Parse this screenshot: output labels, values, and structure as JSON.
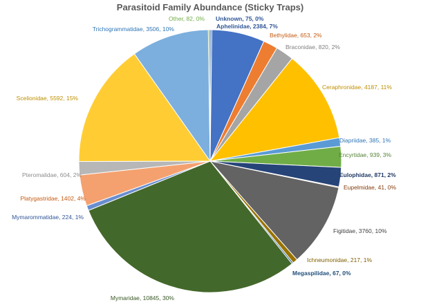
{
  "chart_data": {
    "type": "pie",
    "title": "Parasitoid Family Abundance (Sticky Traps)",
    "slices": [
      {
        "label": "Unknown",
        "value": 75,
        "percent": "0%",
        "color": "#4472C4",
        "label_color": "#2F5597"
      },
      {
        "label": "Aphelinidae",
        "value": 2384,
        "percent": "7%",
        "color": "#4472C4",
        "label_color": "#2F5597"
      },
      {
        "label": "Bethylidae",
        "value": 653,
        "percent": "2%",
        "color": "#ED7D31",
        "label_color": "#C55A11"
      },
      {
        "label": "Braconidae",
        "value": 820,
        "percent": "2%",
        "color": "#A5A5A5",
        "label_color": "#7F7F7F"
      },
      {
        "label": "Ceraphronidae",
        "value": 4187,
        "percent": "11%",
        "color": "#FFC000",
        "label_color": "#BF8F00"
      },
      {
        "label": "Diapriidae",
        "value": 385,
        "percent": "1%",
        "color": "#5B9BD5",
        "label_color": "#2E75B6"
      },
      {
        "label": "Encyrtidae",
        "value": 939,
        "percent": "3%",
        "color": "#70AD47",
        "label_color": "#548235"
      },
      {
        "label": "Eulophidae",
        "value": 871,
        "percent": "2%",
        "color": "#264478",
        "label_color": "#1F3864"
      },
      {
        "label": "Eupelmidae",
        "value": 41,
        "percent": "0%",
        "color": "#9E480E",
        "label_color": "#843C0C"
      },
      {
        "label": "Figitidae",
        "value": 3760,
        "percent": "10%",
        "color": "#636363",
        "label_color": "#404040"
      },
      {
        "label": "Ichneumonidae",
        "value": 217,
        "percent": "1%",
        "color": "#997300",
        "label_color": "#7F6000"
      },
      {
        "label": "Megaspilidae",
        "value": 67,
        "percent": "0%",
        "color": "#255E91",
        "label_color": "#1F4E79"
      },
      {
        "label": "Mymaridae",
        "value": 10845,
        "percent": "30%",
        "color": "#43682B",
        "label_color": "#375623"
      },
      {
        "label": "Mymarommatidae",
        "value": 224,
        "percent": "1%",
        "color": "#698ED0",
        "label_color": "#2F5597"
      },
      {
        "label": "Platygastridae",
        "value": 1402,
        "percent": "4%",
        "color": "#F4A16F",
        "label_color": "#C55A11"
      },
      {
        "label": "Pteromalidae",
        "value": 604,
        "percent": "2%",
        "color": "#B7B7B7",
        "label_color": "#8C8C8C"
      },
      {
        "label": "Scelionidae",
        "value": 5592,
        "percent": "15%",
        "color": "#FFCD33",
        "label_color": "#BF8F00"
      },
      {
        "label": "Trichogrammatidae",
        "value": 3506,
        "percent": "10%",
        "color": "#7CAFDD",
        "label_color": "#2E75B6"
      },
      {
        "label": "Other",
        "value": 82,
        "percent": "0%",
        "color": "#8CC168",
        "label_color": "#70AD47"
      }
    ]
  }
}
